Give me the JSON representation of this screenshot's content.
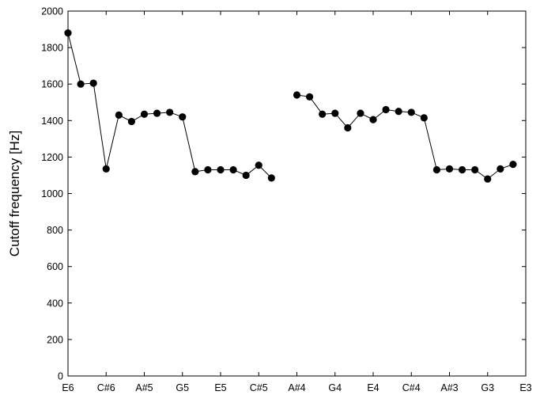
{
  "chart_data": {
    "type": "line",
    "title": "",
    "xlabel": "",
    "ylabel": "Cutoff frequency [Hz]",
    "ylim": [
      0,
      2000
    ],
    "yticks": [
      0,
      200,
      400,
      600,
      800,
      1000,
      1200,
      1400,
      1600,
      1800,
      2000
    ],
    "xlim": [
      0,
      36
    ],
    "xticks": [
      {
        "pos": 0,
        "label": "E6"
      },
      {
        "pos": 3,
        "label": "C#6"
      },
      {
        "pos": 6,
        "label": "A#5"
      },
      {
        "pos": 9,
        "label": "G5"
      },
      {
        "pos": 12,
        "label": "E5"
      },
      {
        "pos": 15,
        "label": "C#5"
      },
      {
        "pos": 18,
        "label": "A#4"
      },
      {
        "pos": 21,
        "label": "G4"
      },
      {
        "pos": 24,
        "label": "E4"
      },
      {
        "pos": 27,
        "label": "C#4"
      },
      {
        "pos": 30,
        "label": "A#3"
      },
      {
        "pos": 33,
        "label": "G3"
      },
      {
        "pos": 36,
        "label": "E3"
      }
    ],
    "grid": false,
    "series": [
      {
        "segments": [
          {
            "x": [
              0,
              1,
              2,
              3,
              4,
              5,
              6,
              7,
              8,
              9,
              10,
              11,
              12,
              13,
              14,
              15,
              16
            ],
            "y": [
              1880,
              1600,
              1605,
              1135,
              1430,
              1395,
              1435,
              1440,
              1445,
              1420,
              1120,
              1130,
              1130,
              1130,
              1100,
              1155,
              1085
            ]
          },
          {
            "x": [
              18,
              19,
              20,
              21,
              22,
              23,
              24,
              25,
              26,
              27,
              28,
              29,
              30,
              31,
              32,
              33,
              34,
              35
            ],
            "y": [
              1540,
              1530,
              1435,
              1440,
              1360,
              1440,
              1405,
              1460,
              1450,
              1445,
              1415,
              1130,
              1135,
              1130,
              1130,
              1080,
              1135,
              1160
            ]
          }
        ]
      }
    ]
  }
}
